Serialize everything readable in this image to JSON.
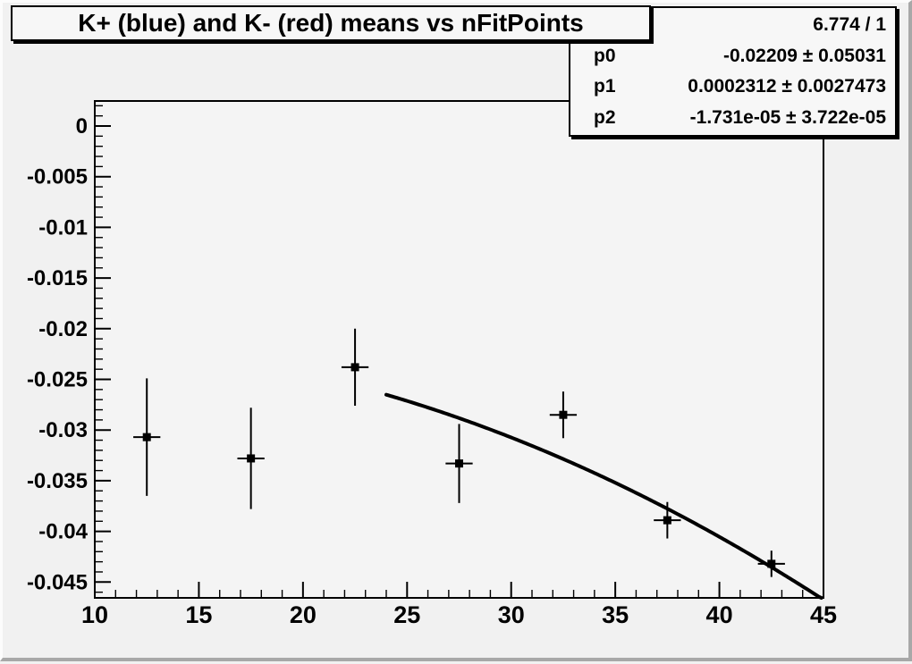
{
  "page": {
    "title_box": {
      "text": "K+ (blue) and K- (red) means vs nFitPoints"
    },
    "stats_box": {
      "chi2": "6.774 / 1",
      "params": [
        {
          "name": "p0",
          "value": "-0.02209 ± 0.05031"
        },
        {
          "name": "p1",
          "value": "0.0002312 ± 0.0027473"
        },
        {
          "name": "p2",
          "value": "-1.731e-05 ± 3.722e-05"
        }
      ]
    }
  },
  "chart_data": {
    "type": "scatter",
    "title": "K+ (blue) and K- (red) means vs nFitPoints",
    "xlabel": "",
    "ylabel": "",
    "grid": false,
    "xlim": [
      10,
      45
    ],
    "ylim": [
      -0.04656,
      0.00247
    ],
    "x_major_ticks": [
      10,
      15,
      20,
      25,
      30,
      35,
      40,
      45
    ],
    "x_tick_labels": [
      "10",
      "15",
      "20",
      "25",
      "30",
      "35",
      "40",
      "45"
    ],
    "x_minor_step": 1,
    "y_major_ticks": [
      0,
      -0.005,
      -0.01,
      -0.015,
      -0.02,
      -0.025,
      -0.03,
      -0.035,
      -0.04,
      -0.045
    ],
    "y_tick_labels": [
      "0",
      "-0.005",
      "-0.01",
      "-0.015",
      "-0.02",
      "-0.025",
      "-0.03",
      "-0.035",
      "-0.04",
      "-0.045"
    ],
    "y_minor_step": 0.001,
    "series": [
      {
        "name": "K means vs nFitPoints",
        "marker": "filled-square",
        "color": "#000000",
        "x": [
          12.5,
          17.5,
          22.5,
          27.5,
          32.5,
          37.5,
          42.5
        ],
        "y": [
          -0.0307,
          -0.0328,
          -0.0238,
          -0.0333,
          -0.0285,
          -0.0389,
          -0.0432
        ],
        "y_err": [
          0.0058,
          0.005,
          0.0038,
          0.0039,
          0.0023,
          0.0018,
          0.0013
        ],
        "x_err": 0.65
      }
    ],
    "fit_curve": {
      "type": "pol2",
      "p0": -0.02209,
      "p1": 0.0002312,
      "p2": -1.731e-05,
      "x_range": [
        24.0,
        44.95
      ],
      "chi2_ndf": "6.774 / 1",
      "color": "#000000"
    }
  },
  "colors": {
    "canvas_bg": "#f1f1f1",
    "frame_bg": "#f4f4f4",
    "box_bg": "#f7f7f7",
    "border_highlight": "#fcfcfc",
    "border_shadow": "#a8a8a8",
    "ink": "#000000"
  }
}
